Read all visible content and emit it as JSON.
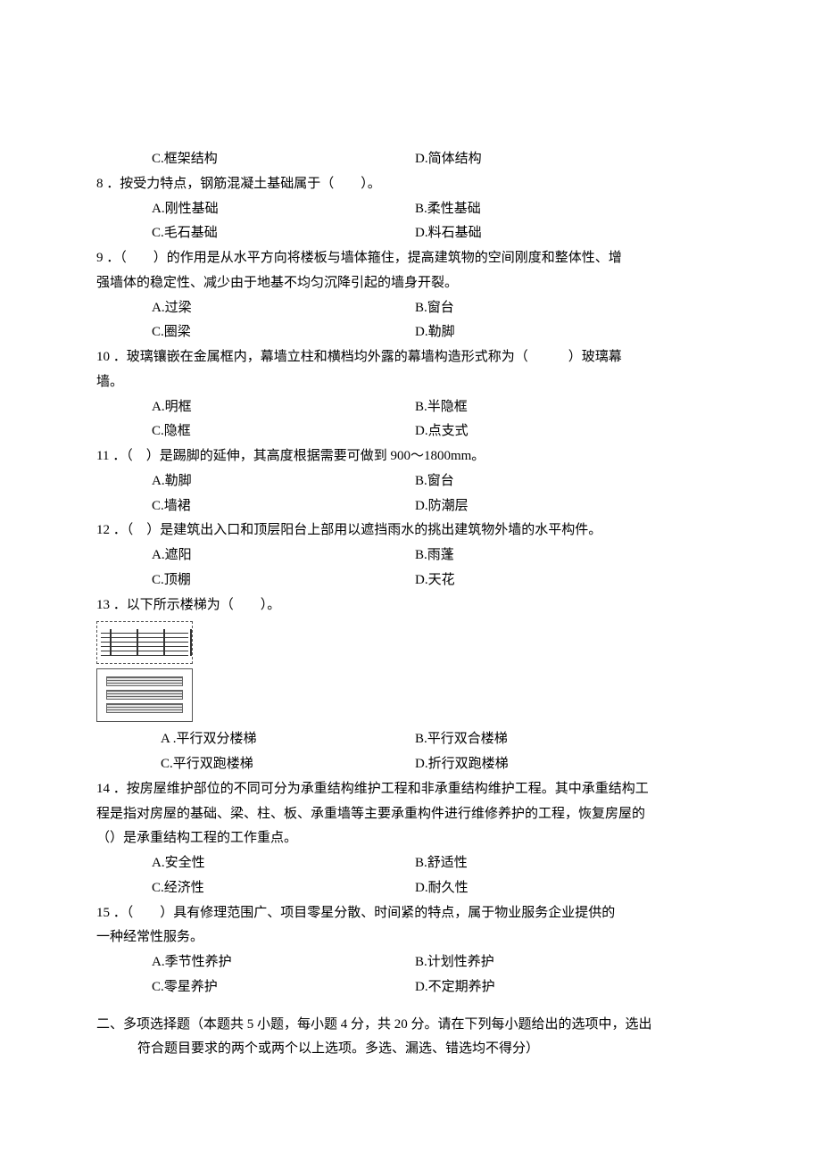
{
  "q7tail": {
    "optC": "C.框架结构",
    "optD": "D.简体结构"
  },
  "q8": {
    "text": "8 ．按受力特点，钢筋混凝土基础属于（　　）。",
    "optA": "A.刚性基础",
    "optB": "B.柔性基础",
    "optC": "C.毛石基础",
    "optD": "D.料石基础"
  },
  "q9": {
    "text1": "9 ．（　　）的作用是从水平方向将楼板与墙体箍住，提高建筑物的空间刚度和整体性、增",
    "text2": "强墙体的稳定性、减少由于地基不均匀沉降引起的墙身开裂。",
    "optA": "A.过梁",
    "optB": "B.窗台",
    "optC": "C.圈梁",
    "optD": "D.勒脚"
  },
  "q10": {
    "text1": "10 ．玻璃镶嵌在金属框内，幕墙立柱和横档均外露的幕墙构造形式称为（　　　）玻璃幕",
    "text2": "墙。",
    "optA": "A.明框",
    "optB": "B.半隐框",
    "optC": "C.隐框",
    "optD": "D.点支式"
  },
  "q11": {
    "text": "11 ．（　）是踢脚的延伸，其高度根据需要可做到 900～1800mm。",
    "optA": "A.勒脚",
    "optB": "B.窗台",
    "optC": "C.墙裙",
    "optD": "D.防潮层"
  },
  "q12": {
    "text": "12 ．（　）是建筑出入口和顶层阳台上部用以遮挡雨水的挑出建筑物外墙的水平构件。",
    "optA": "A.遮阳",
    "optB": "B.雨蓬",
    "optC": "C.顶棚",
    "optD": "D.天花"
  },
  "q13": {
    "text": "13 ．以下所示楼梯为（　　）。",
    "optA": "A .平行双分楼梯",
    "optB": "B.平行双合楼梯",
    "optC": "C.平行双跑楼梯",
    "optD": "D.折行双跑楼梯"
  },
  "q14": {
    "text1": "14 ．按房屋维护部位的不同可分为承重结构维护工程和非承重结构维护工程。其中承重结构工",
    "text2": "程是指对房屋的基础、梁、柱、板、承重墙等主要承重构件进行维修养护的工程，恢复房屋的",
    "text3": "（）是承重结构工程的工作重点。",
    "optA": "A.安全性",
    "optB": "B.舒适性",
    "optC": "C.经济性",
    "optD": "D.耐久性"
  },
  "q15": {
    "text1": "15 ．（　　）具有修理范围广、项目零星分散、时间紧的特点，属于物业服务企业提供的",
    "text2": "一种经常性服务。",
    "optA": "A.季节性养护",
    "optB": "B.计划性养护",
    "optC": "C.零星养护",
    "optD": "D.不定期养护"
  },
  "section2": {
    "line1": "二、多项选择题（本题共 5 小题，每小题 4 分，共 20 分。请在下列每小题给出的选项中，选出",
    "line2": "符合题目要求的两个或两个以上选项。多选、漏选、错选均不得分）"
  }
}
